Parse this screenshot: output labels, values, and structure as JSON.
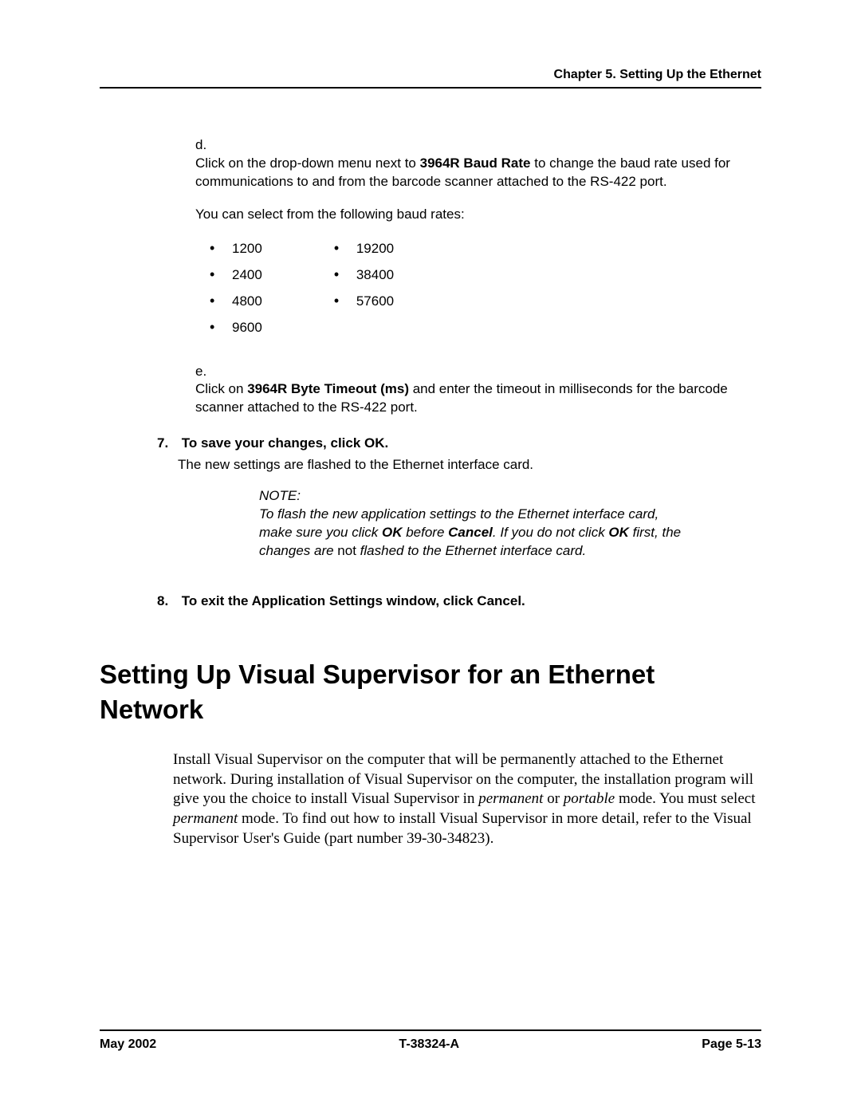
{
  "header": {
    "chapter": "Chapter 5. Setting Up the Ethernet"
  },
  "steps": {
    "d": {
      "marker": "d.",
      "text_pre": "Click on the drop-down menu next to ",
      "bold": "3964R Baud Rate",
      "text_post": " to change the baud rate used for communications to and from the barcode scanner attached to the RS-422 port.",
      "select_intro": "You can select from the following baud rates:",
      "baud_left": [
        "1200",
        "2400",
        "4800",
        "9600"
      ],
      "baud_right": [
        "19200",
        "38400",
        "57600"
      ]
    },
    "e": {
      "marker": "e.",
      "text_pre": "Click on ",
      "bold": "3964R Byte Timeout (ms)",
      "text_post": " and enter the timeout in milliseconds for the barcode scanner attached to the RS-422 port."
    },
    "s7": {
      "num": "7.",
      "head": "To save your changes, click OK.",
      "sub": "The new settings are flashed to the Ethernet interface card."
    },
    "note": {
      "label": "NOTE:",
      "t1": "To flash the new application settings to the Ethernet interface card, make sure you click ",
      "b1": "OK",
      "t2": " before ",
      "b2": "Cancel",
      "t3": ". If you do not click ",
      "b3": "OK",
      "t4": " first, the changes are ",
      "not": "not",
      "t5": " flashed to the Ethernet interface card."
    },
    "s8": {
      "num": "8.",
      "head": "To exit the Application Settings window, click Cancel."
    }
  },
  "section": {
    "title": "Setting Up Visual Supervisor for an Ethernet Network",
    "p1a": "Install Visual Supervisor on the computer that will be permanently attached to the Ethernet network. During installation of Visual Supervisor on the computer, the installation program will give you the choice to install Visual Supervisor in ",
    "it1": "permanent",
    "p1b": " or ",
    "it2": "portable",
    "p1c": " mode. You must select ",
    "it3": "permanent",
    "p1d": " mode. To find out how to install Visual Supervisor in more detail, refer to the Visual Supervisor User's Guide (part number 39-30-34823)."
  },
  "footer": {
    "left": "May 2002",
    "center": "T-38324-A",
    "right": "Page 5-13"
  }
}
